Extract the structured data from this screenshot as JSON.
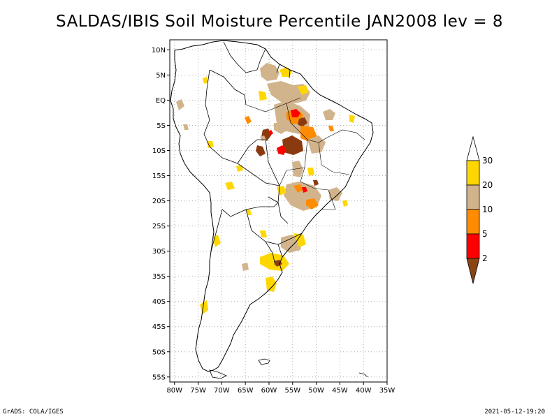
{
  "title": "SALDAS/IBIS Soil Moisture Percentile JAN2008 lev = 8",
  "footer": {
    "left": "GrADS: COLA/IGES",
    "right": "2021-05-12-19:20"
  },
  "map": {
    "lat_ticks": [
      "10N",
      "5N",
      "EQ",
      "5S",
      "10S",
      "15S",
      "20S",
      "25S",
      "30S",
      "35S",
      "40S",
      "45S",
      "50S",
      "55S"
    ],
    "lon_ticks": [
      "80W",
      "75W",
      "70W",
      "65W",
      "60W",
      "55W",
      "50W",
      "45W",
      "40W",
      "35W"
    ],
    "lat_values": [
      10,
      5,
      0,
      -5,
      -10,
      -15,
      -20,
      -25,
      -30,
      -35,
      -40,
      -45,
      -50,
      -55
    ],
    "lon_values": [
      -80,
      -75,
      -70,
      -65,
      -60,
      -55,
      -50,
      -45,
      -40,
      -35
    ],
    "lon_range": [
      -81,
      -35
    ],
    "lat_range": [
      -56,
      12
    ],
    "colors": {
      "land_outline": "#000000",
      "grid": "#b0b0b0"
    }
  },
  "legend": {
    "labels": [
      "30",
      "20",
      "10",
      "5",
      "2"
    ],
    "colors": {
      "above_30": "#ffffff",
      "20_30": "#ffd700",
      "10_20": "#d2b48c",
      "5_10": "#ff8c00",
      "2_5": "#ff0000",
      "below_2": "#8b4513"
    }
  },
  "anomaly_colors": {
    "yellow": "#ffd700",
    "tan": "#d2b48c",
    "orange": "#ff8c00",
    "red": "#ff0000",
    "brown": "#8b3a10"
  }
}
